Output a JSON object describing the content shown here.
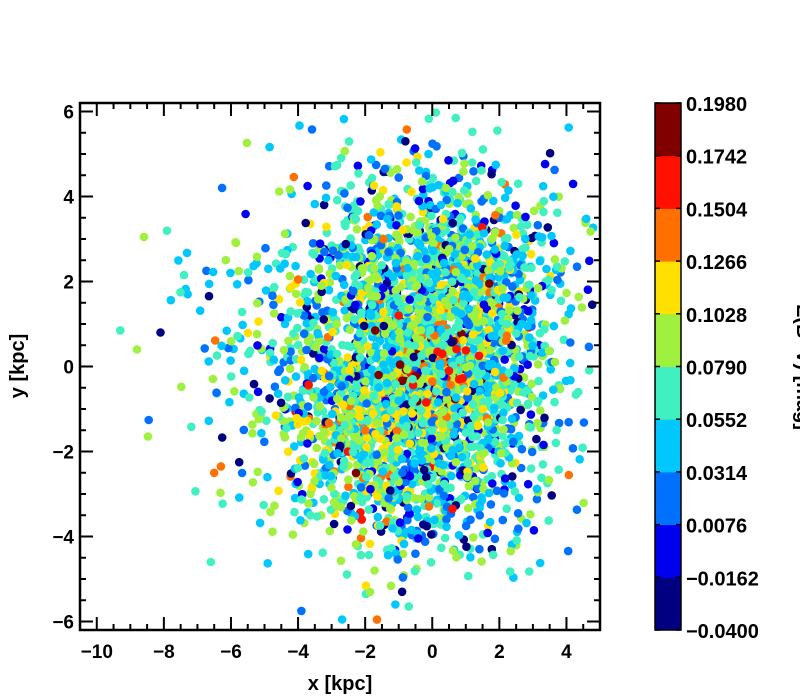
{
  "chart_data": {
    "type": "scatter",
    "xlabel": "x [kpc]",
    "ylabel": "y [kpc]",
    "xlim": [
      -10.5,
      5.0
    ],
    "ylim": [
      -6.2,
      6.2
    ],
    "x_ticks": [
      -10,
      -8,
      -6,
      -4,
      -2,
      0,
      2,
      4
    ],
    "y_ticks": [
      -6,
      -4,
      -2,
      0,
      2,
      4,
      6
    ],
    "colorbar": {
      "label": "E(B−V) [mag]",
      "range": [
        -0.04,
        0.198
      ],
      "tick_labels": [
        "0.1980",
        "0.1742",
        "0.1504",
        "0.1266",
        "0.1028",
        "0.0790",
        "0.0552",
        "0.0314",
        "0.0076",
        "−0.0162",
        "−0.0400"
      ],
      "colors": [
        "#000080",
        "#0000ee",
        "#0070ff",
        "#00c8ff",
        "#40f0c0",
        "#a0f040",
        "#ffe000",
        "#ff7000",
        "#ff1000",
        "#800000"
      ]
    },
    "clusters": [
      {
        "cx": -0.2,
        "cy": 0.2,
        "sx": 2.0,
        "sy": 2.1,
        "n": 2600
      },
      {
        "cx": 0.6,
        "cy": 1.8,
        "sx": 1.7,
        "sy": 1.3,
        "n": 500
      },
      {
        "cx": -1.6,
        "cy": -1.8,
        "sx": 1.3,
        "sy": 1.2,
        "n": 400
      },
      {
        "cx": -4.8,
        "cy": 0.0,
        "sx": 1.6,
        "sy": 2.0,
        "n": 160
      }
    ],
    "notable_points": [
      {
        "x": -8.1,
        "y": 0.8,
        "v": -0.03
      },
      {
        "x": -9.3,
        "y": 0.85,
        "v": 0.07
      },
      {
        "x": -8.8,
        "y": 0.4,
        "v": 0.1
      },
      {
        "x": -7.4,
        "y": 2.15,
        "v": 0.07
      },
      {
        "x": -3.9,
        "y": -5.75,
        "v": 0.01
      },
      {
        "x": -1.1,
        "y": -5.6,
        "v": 0.04
      },
      {
        "x": -0.9,
        "y": -5.3,
        "v": -0.02
      },
      {
        "x": -0.8,
        "y": 5.3,
        "v": -0.02
      },
      {
        "x": 0.7,
        "y": 5.85,
        "v": 0.07
      },
      {
        "x": -6.6,
        "y": -4.6,
        "v": 0.07
      },
      {
        "x": -6.5,
        "y": -2.5,
        "v": 0.13
      },
      {
        "x": -6.3,
        "y": -2.35,
        "v": 0.13
      },
      {
        "x": 0.8,
        "y": -0.3,
        "v": 0.17
      },
      {
        "x": 0.5,
        "y": -0.1,
        "v": 0.16
      },
      {
        "x": 0.3,
        "y": 0.3,
        "v": 0.17
      },
      {
        "x": 0.0,
        "y": -0.35,
        "v": 0.15
      },
      {
        "x": 1.7,
        "y": 1.95,
        "v": 0.18
      },
      {
        "x": -1.7,
        "y": 0.85,
        "v": 0.19
      },
      {
        "x": -1.6,
        "y": -0.2,
        "v": 0.19
      },
      {
        "x": 0.6,
        "y": -3.35,
        "v": 0.16
      },
      {
        "x": -4.0,
        "y": 2.05,
        "v": 0.15
      },
      {
        "x": -1.0,
        "y": 1.2,
        "v": 0.16
      },
      {
        "x": -2.0,
        "y": -1.5,
        "v": 0.14
      }
    ]
  }
}
